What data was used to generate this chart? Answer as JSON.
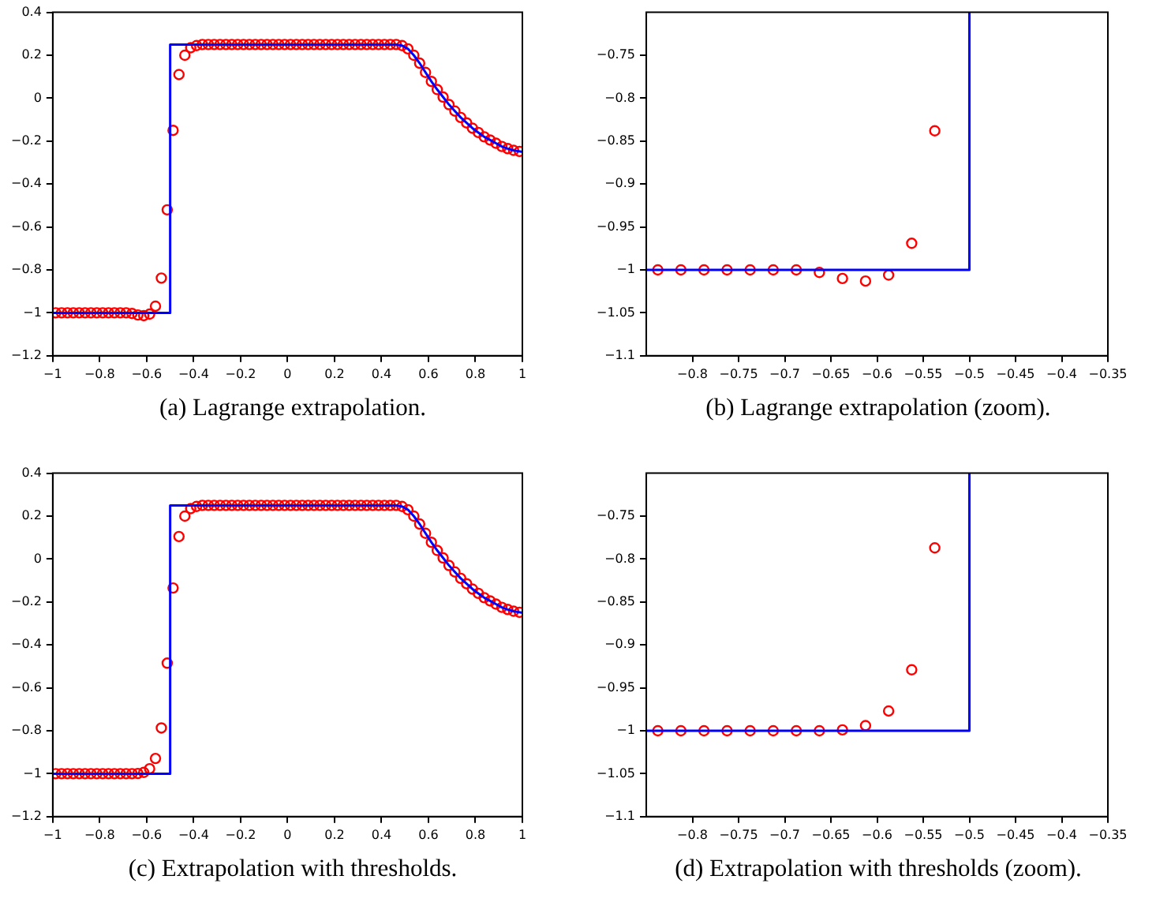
{
  "chart_data": [
    {
      "type": "scatter",
      "title": "(a) Lagrange extrapolation.",
      "xlim": [
        -1,
        1
      ],
      "xticks": [
        -1,
        -0.8,
        -0.6,
        -0.4,
        -0.2,
        0,
        0.2,
        0.4,
        0.6,
        0.8,
        1
      ],
      "ylim": [
        -1.2,
        0.4
      ],
      "yticks": [
        -1.2,
        -1,
        -0.8,
        -0.6,
        -0.4,
        -0.2,
        0,
        0.2,
        0.4
      ],
      "grid": false,
      "series": [
        {
          "type": "line",
          "color": "#0000ff",
          "line_style": "solid",
          "x": [
            -1,
            -0.5,
            -0.5,
            0.4625,
            0.4875,
            0.5125,
            0.5375,
            0.5625,
            0.5875,
            0.6125,
            0.6375,
            0.6625,
            0.6875,
            0.7125,
            0.7375,
            0.7625,
            0.7875,
            0.8125,
            0.8375,
            0.8625,
            0.8875,
            0.9125,
            0.9375,
            0.9625,
            0.9875,
            1
          ],
          "values": [
            -1,
            -1,
            0.25,
            0.25,
            0.245,
            0.23,
            0.2,
            0.163,
            0.12,
            0.078,
            0.04,
            0.005,
            -0.03,
            -0.06,
            -0.09,
            -0.115,
            -0.14,
            -0.16,
            -0.18,
            -0.195,
            -0.21,
            -0.225,
            -0.235,
            -0.243,
            -0.248,
            -0.25
          ]
        },
        {
          "type": "scatter",
          "color": "#ff0000",
          "marker": "circle",
          "x": [
            -0.9875,
            -0.9625,
            -0.9375,
            -0.9125,
            -0.8875,
            -0.8625,
            -0.8375,
            -0.8125,
            -0.7875,
            -0.7625,
            -0.7375,
            -0.7125,
            -0.6875,
            -0.6625,
            -0.6375,
            -0.6125,
            -0.5875,
            -0.5625,
            -0.5375,
            -0.5125,
            -0.4875,
            -0.4625,
            -0.4375,
            -0.4125,
            -0.3875,
            -0.3625,
            -0.3375,
            -0.3125,
            -0.2875,
            -0.2625,
            -0.2375,
            -0.2125,
            -0.1875,
            -0.1625,
            -0.1375,
            -0.1125,
            -0.0875,
            -0.0625,
            -0.0375,
            -0.0125,
            0.0125,
            0.0375,
            0.0625,
            0.0875,
            0.1125,
            0.1375,
            0.1625,
            0.1875,
            0.2125,
            0.2375,
            0.2625,
            0.2875,
            0.3125,
            0.3375,
            0.3625,
            0.3875,
            0.4125,
            0.4375,
            0.4625,
            0.4875,
            0.5125,
            0.5375,
            0.5625,
            0.5875,
            0.6125,
            0.6375,
            0.6625,
            0.6875,
            0.7125,
            0.7375,
            0.7625,
            0.7875,
            0.8125,
            0.8375,
            0.8625,
            0.8875,
            0.9125,
            0.9375,
            0.9625,
            0.9875
          ],
          "values": [
            -1,
            -1,
            -1,
            -1,
            -1,
            -1,
            -1,
            -1,
            -1,
            -1,
            -1,
            -1,
            -1,
            -1.003,
            -1.01,
            -1.013,
            -1.006,
            -0.969,
            -0.838,
            -0.52,
            -0.15,
            0.11,
            0.2,
            0.235,
            0.245,
            0.25,
            0.25,
            0.25,
            0.25,
            0.25,
            0.25,
            0.25,
            0.25,
            0.25,
            0.25,
            0.25,
            0.25,
            0.25,
            0.25,
            0.25,
            0.25,
            0.25,
            0.25,
            0.25,
            0.25,
            0.25,
            0.25,
            0.25,
            0.25,
            0.25,
            0.25,
            0.25,
            0.25,
            0.25,
            0.25,
            0.25,
            0.25,
            0.25,
            0.25,
            0.245,
            0.23,
            0.2,
            0.163,
            0.12,
            0.078,
            0.04,
            0.005,
            -0.03,
            -0.06,
            -0.09,
            -0.115,
            -0.14,
            -0.16,
            -0.18,
            -0.195,
            -0.21,
            -0.225,
            -0.235,
            -0.243,
            -0.248
          ]
        }
      ]
    },
    {
      "type": "scatter",
      "title": "(b) Lagrange extrapolation (zoom).",
      "xlim": [
        -0.85,
        -0.35
      ],
      "xticks": [
        -0.8,
        -0.75,
        -0.7,
        -0.65,
        -0.6,
        -0.55,
        -0.5,
        -0.45,
        -0.4,
        -0.35
      ],
      "ylim": [
        -1.1,
        -0.7
      ],
      "yticks": [
        -1.1,
        -1.05,
        -1,
        -0.95,
        -0.9,
        -0.85,
        -0.8,
        -0.75
      ],
      "grid": false,
      "series": [
        {
          "type": "line",
          "color": "#0000ff",
          "line_style": "solid",
          "x": [
            -0.85,
            -0.5,
            -0.5
          ],
          "values": [
            -1,
            -1,
            -0.7
          ]
        },
        {
          "type": "scatter",
          "color": "#ff0000",
          "marker": "circle",
          "x": [
            -0.8375,
            -0.8125,
            -0.7875,
            -0.7625,
            -0.7375,
            -0.7125,
            -0.6875,
            -0.6625,
            -0.6375,
            -0.6125,
            -0.5875,
            -0.5625,
            -0.5375
          ],
          "values": [
            -1,
            -1,
            -1,
            -1,
            -1,
            -1,
            -1,
            -1.003,
            -1.01,
            -1.013,
            -1.006,
            -0.969,
            -0.838
          ]
        }
      ]
    },
    {
      "type": "scatter",
      "title": "(c) Extrapolation with thresholds.",
      "xlim": [
        -1,
        1
      ],
      "xticks": [
        -1,
        -0.8,
        -0.6,
        -0.4,
        -0.2,
        0,
        0.2,
        0.4,
        0.6,
        0.8,
        1
      ],
      "ylim": [
        -1.2,
        0.4
      ],
      "yticks": [
        -1.2,
        -1,
        -0.8,
        -0.6,
        -0.4,
        -0.2,
        0,
        0.2,
        0.4
      ],
      "grid": false,
      "series": [
        {
          "type": "line",
          "color": "#0000ff",
          "line_style": "solid",
          "x": [
            -1,
            -0.5,
            -0.5,
            0.4625,
            0.4875,
            0.5125,
            0.5375,
            0.5625,
            0.5875,
            0.6125,
            0.6375,
            0.6625,
            0.6875,
            0.7125,
            0.7375,
            0.7625,
            0.7875,
            0.8125,
            0.8375,
            0.8625,
            0.8875,
            0.9125,
            0.9375,
            0.9625,
            0.9875,
            1
          ],
          "values": [
            -1,
            -1,
            0.25,
            0.25,
            0.245,
            0.23,
            0.2,
            0.163,
            0.12,
            0.078,
            0.04,
            0.005,
            -0.03,
            -0.06,
            -0.09,
            -0.115,
            -0.14,
            -0.16,
            -0.18,
            -0.195,
            -0.21,
            -0.225,
            -0.235,
            -0.243,
            -0.248,
            -0.25
          ]
        },
        {
          "type": "scatter",
          "color": "#ff0000",
          "marker": "circle",
          "x": [
            -0.9875,
            -0.9625,
            -0.9375,
            -0.9125,
            -0.8875,
            -0.8625,
            -0.8375,
            -0.8125,
            -0.7875,
            -0.7625,
            -0.7375,
            -0.7125,
            -0.6875,
            -0.6625,
            -0.6375,
            -0.6125,
            -0.5875,
            -0.5625,
            -0.5375,
            -0.5125,
            -0.4875,
            -0.4625,
            -0.4375,
            -0.4125,
            -0.3875,
            -0.3625,
            -0.3375,
            -0.3125,
            -0.2875,
            -0.2625,
            -0.2375,
            -0.2125,
            -0.1875,
            -0.1625,
            -0.1375,
            -0.1125,
            -0.0875,
            -0.0625,
            -0.0375,
            -0.0125,
            0.0125,
            0.0375,
            0.0625,
            0.0875,
            0.1125,
            0.1375,
            0.1625,
            0.1875,
            0.2125,
            0.2375,
            0.2625,
            0.2875,
            0.3125,
            0.3375,
            0.3625,
            0.3875,
            0.4125,
            0.4375,
            0.4625,
            0.4875,
            0.5125,
            0.5375,
            0.5625,
            0.5875,
            0.6125,
            0.6375,
            0.6625,
            0.6875,
            0.7125,
            0.7375,
            0.7625,
            0.7875,
            0.8125,
            0.8375,
            0.8625,
            0.8875,
            0.9125,
            0.9375,
            0.9625,
            0.9875
          ],
          "values": [
            -1,
            -1,
            -1,
            -1,
            -1,
            -1,
            -1,
            -1,
            -1,
            -1,
            -1,
            -1,
            -1,
            -1,
            -0.999,
            -0.994,
            -0.977,
            -0.929,
            -0.787,
            -0.485,
            -0.135,
            0.105,
            0.2,
            0.235,
            0.245,
            0.25,
            0.25,
            0.25,
            0.25,
            0.25,
            0.25,
            0.25,
            0.25,
            0.25,
            0.25,
            0.25,
            0.25,
            0.25,
            0.25,
            0.25,
            0.25,
            0.25,
            0.25,
            0.25,
            0.25,
            0.25,
            0.25,
            0.25,
            0.25,
            0.25,
            0.25,
            0.25,
            0.25,
            0.25,
            0.25,
            0.25,
            0.25,
            0.25,
            0.25,
            0.245,
            0.23,
            0.2,
            0.163,
            0.12,
            0.078,
            0.04,
            0.005,
            -0.03,
            -0.06,
            -0.09,
            -0.115,
            -0.14,
            -0.16,
            -0.18,
            -0.195,
            -0.21,
            -0.225,
            -0.235,
            -0.243,
            -0.248
          ]
        }
      ]
    },
    {
      "type": "scatter",
      "title": "(d) Extrapolation with thresholds (zoom).",
      "xlim": [
        -0.85,
        -0.35
      ],
      "xticks": [
        -0.8,
        -0.75,
        -0.7,
        -0.65,
        -0.6,
        -0.55,
        -0.5,
        -0.45,
        -0.4,
        -0.35
      ],
      "ylim": [
        -1.1,
        -0.7
      ],
      "yticks": [
        -1.1,
        -1.05,
        -1,
        -0.95,
        -0.9,
        -0.85,
        -0.8,
        -0.75
      ],
      "grid": false,
      "series": [
        {
          "type": "line",
          "color": "#0000ff",
          "line_style": "solid",
          "x": [
            -0.85,
            -0.5,
            -0.5
          ],
          "values": [
            -1,
            -1,
            -0.7
          ]
        },
        {
          "type": "scatter",
          "color": "#ff0000",
          "marker": "circle",
          "x": [
            -0.8375,
            -0.8125,
            -0.7875,
            -0.7625,
            -0.7375,
            -0.7125,
            -0.6875,
            -0.6625,
            -0.6375,
            -0.6125,
            -0.5875,
            -0.5625,
            -0.5375
          ],
          "values": [
            -1,
            -1,
            -1,
            -1,
            -1,
            -1,
            -1,
            -1,
            -0.999,
            -0.994,
            -0.977,
            -0.929,
            -0.787
          ]
        }
      ]
    }
  ]
}
